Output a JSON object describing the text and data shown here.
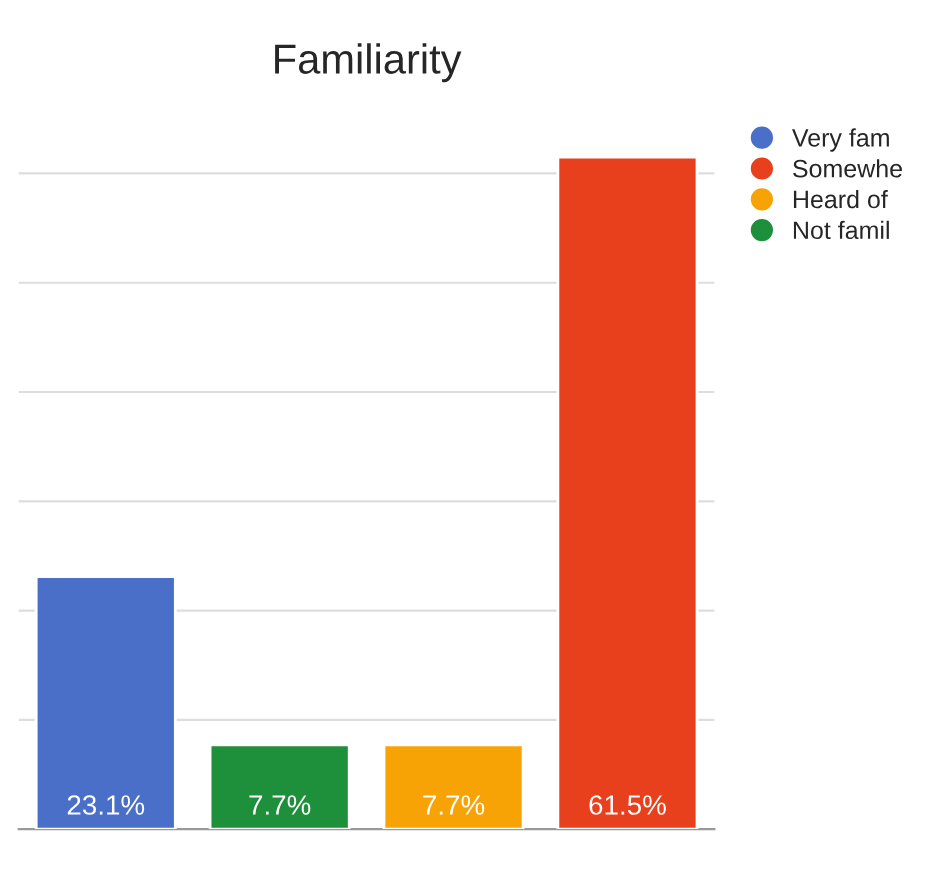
{
  "chart_data": {
    "type": "bar",
    "title": "Familiarity",
    "categories": [
      null,
      null,
      null,
      null
    ],
    "series": [
      {
        "name": "Very fam",
        "color": "#4a6fc9",
        "values": [
          23.1,
          null,
          null,
          null
        ],
        "value_labels": [
          "23.1%",
          null,
          null,
          null
        ]
      },
      {
        "name": "Somewhe",
        "color": "#e8401c",
        "values": [
          null,
          null,
          null,
          61.5
        ],
        "value_labels": [
          null,
          null,
          null,
          "61.5%"
        ]
      },
      {
        "name": "Heard of",
        "color": "#f8a305",
        "values": [
          null,
          null,
          7.7,
          null
        ],
        "value_labels": [
          null,
          null,
          "7.7%",
          null
        ]
      },
      {
        "name": "Not famil",
        "color": "#1e8f3a",
        "values": [
          null,
          7.7,
          null,
          null
        ],
        "value_labels": [
          null,
          "7.7%",
          null,
          null
        ]
      }
    ],
    "stacked": true,
    "grid": "y",
    "legend": "top right"
  }
}
